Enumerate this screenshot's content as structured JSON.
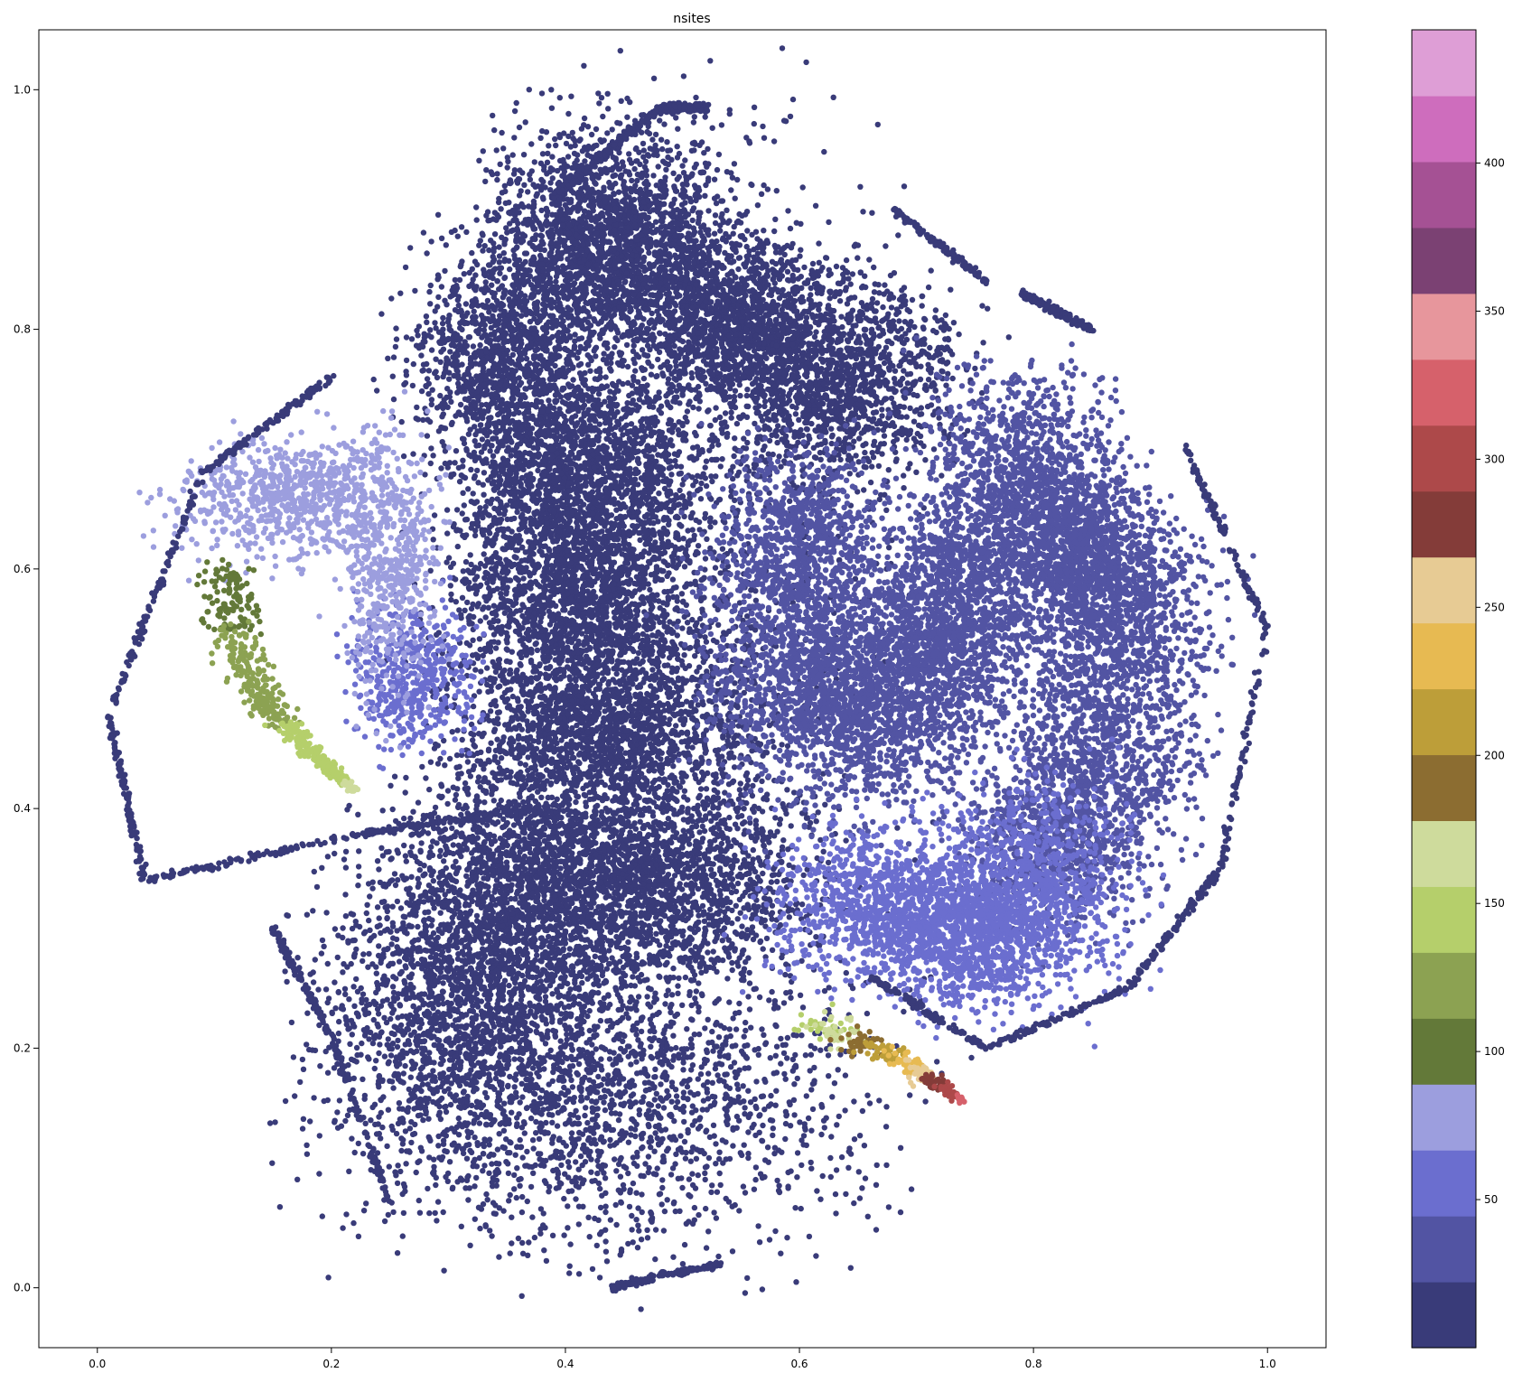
{
  "chart_data": {
    "type": "scatter",
    "title": "nsites",
    "xlabel": "",
    "ylabel": "",
    "xlim": [
      -0.05,
      1.05
    ],
    "ylim": [
      -0.05,
      1.05
    ],
    "xticks": [
      0.0,
      0.2,
      0.4,
      0.6,
      0.8,
      1.0
    ],
    "xtick_labels": [
      "0.0",
      "0.2",
      "0.4",
      "0.6",
      "0.8",
      "1.0"
    ],
    "yticks": [
      0.0,
      0.2,
      0.4,
      0.6,
      0.8,
      1.0
    ],
    "ytick_labels": [
      "0.0",
      "0.2",
      "0.4",
      "0.6",
      "0.8",
      "1.0"
    ],
    "grid": false,
    "legend": "none",
    "colorbar": {
      "vmin": 0,
      "vmax": 445,
      "ticks": [
        50,
        100,
        150,
        200,
        250,
        300,
        350,
        400
      ],
      "tick_labels": [
        "50",
        "100",
        "150",
        "200",
        "250",
        "300",
        "350",
        "400"
      ],
      "colors": [
        "#393b79",
        "#5254a3",
        "#6b6ecf",
        "#9c9ede",
        "#637939",
        "#8ca252",
        "#b5cf6b",
        "#cedb9c",
        "#8c6d31",
        "#bd9e39",
        "#e7ba52",
        "#e7cb94",
        "#843c39",
        "#ad494a",
        "#d6616b",
        "#e7969c",
        "#7b4173",
        "#a55194",
        "#ce6dbd",
        "#de9ed6"
      ]
    },
    "clusters": [
      {
        "cx": 0.44,
        "cy": 0.87,
        "sx": 0.05,
        "sy": 0.045,
        "n": 2200,
        "value": 10
      },
      {
        "cx": 0.35,
        "cy": 0.78,
        "sx": 0.04,
        "sy": 0.04,
        "n": 1200,
        "value": 10
      },
      {
        "cx": 0.54,
        "cy": 0.81,
        "sx": 0.04,
        "sy": 0.035,
        "n": 1200,
        "value": 10
      },
      {
        "cx": 0.63,
        "cy": 0.76,
        "sx": 0.05,
        "sy": 0.04,
        "n": 1500,
        "value": 10
      },
      {
        "cx": 0.41,
        "cy": 0.68,
        "sx": 0.05,
        "sy": 0.04,
        "n": 1700,
        "value": 10
      },
      {
        "cx": 0.41,
        "cy": 0.58,
        "sx": 0.05,
        "sy": 0.04,
        "n": 1600,
        "value": 10
      },
      {
        "cx": 0.43,
        "cy": 0.47,
        "sx": 0.06,
        "sy": 0.04,
        "n": 1900,
        "value": 10
      },
      {
        "cx": 0.36,
        "cy": 0.33,
        "sx": 0.06,
        "sy": 0.05,
        "n": 1900,
        "value": 10
      },
      {
        "cx": 0.48,
        "cy": 0.34,
        "sx": 0.06,
        "sy": 0.04,
        "n": 1600,
        "value": 10
      },
      {
        "cx": 0.31,
        "cy": 0.22,
        "sx": 0.06,
        "sy": 0.06,
        "n": 1500,
        "value": 10
      },
      {
        "cx": 0.44,
        "cy": 0.16,
        "sx": 0.1,
        "sy": 0.06,
        "n": 1700,
        "value": 10
      },
      {
        "cx": 0.52,
        "cy": 0.62,
        "sx": 0.08,
        "sy": 0.18,
        "n": 1200,
        "value": 10
      },
      {
        "cx": 0.6,
        "cy": 0.54,
        "sx": 0.04,
        "sy": 0.06,
        "n": 1500,
        "value": 30
      },
      {
        "cx": 0.66,
        "cy": 0.48,
        "sx": 0.04,
        "sy": 0.04,
        "n": 900,
        "value": 30
      },
      {
        "cx": 0.72,
        "cy": 0.53,
        "sx": 0.04,
        "sy": 0.04,
        "n": 1100,
        "value": 30
      },
      {
        "cx": 0.79,
        "cy": 0.68,
        "sx": 0.04,
        "sy": 0.04,
        "n": 1100,
        "value": 30
      },
      {
        "cx": 0.84,
        "cy": 0.62,
        "sx": 0.03,
        "sy": 0.03,
        "n": 800,
        "value": 30
      },
      {
        "cx": 0.87,
        "cy": 0.57,
        "sx": 0.04,
        "sy": 0.04,
        "n": 1000,
        "value": 30
      },
      {
        "cx": 0.86,
        "cy": 0.46,
        "sx": 0.04,
        "sy": 0.05,
        "n": 1000,
        "value": 30
      },
      {
        "cx": 0.74,
        "cy": 0.6,
        "sx": 0.03,
        "sy": 0.03,
        "n": 600,
        "value": 30
      },
      {
        "cx": 0.6,
        "cy": 0.64,
        "sx": 0.03,
        "sy": 0.03,
        "n": 500,
        "value": 30
      },
      {
        "cx": 0.82,
        "cy": 0.38,
        "sx": 0.04,
        "sy": 0.04,
        "n": 800,
        "value": 30
      },
      {
        "cx": 0.68,
        "cy": 0.32,
        "sx": 0.05,
        "sy": 0.03,
        "n": 1100,
        "value": 45
      },
      {
        "cx": 0.75,
        "cy": 0.29,
        "sx": 0.04,
        "sy": 0.03,
        "n": 900,
        "value": 45
      },
      {
        "cx": 0.8,
        "cy": 0.34,
        "sx": 0.04,
        "sy": 0.04,
        "n": 900,
        "value": 45
      },
      {
        "cx": 0.27,
        "cy": 0.51,
        "sx": 0.025,
        "sy": 0.03,
        "n": 500,
        "value": 45
      },
      {
        "cx": 0.17,
        "cy": 0.66,
        "sx": 0.05,
        "sy": 0.025,
        "n": 800,
        "value": 75
      },
      {
        "cx": 0.25,
        "cy": 0.6,
        "sx": 0.02,
        "sy": 0.05,
        "n": 500,
        "value": 75
      }
    ],
    "curves": [
      {
        "value": 10,
        "n": 500,
        "points": [
          [
            0.39,
            0.91
          ],
          [
            0.48,
            0.985
          ],
          [
            0.52,
            0.985
          ]
        ]
      },
      {
        "value": 10,
        "n": 600,
        "points": [
          [
            0.2,
            0.76
          ],
          [
            0.09,
            0.68
          ],
          [
            0.01,
            0.48
          ],
          [
            0.04,
            0.34
          ],
          [
            0.23,
            0.38
          ],
          [
            0.38,
            0.4
          ]
        ]
      },
      {
        "value": 10,
        "n": 500,
        "points": [
          [
            0.93,
            0.7
          ],
          [
            1.0,
            0.55
          ],
          [
            0.96,
            0.35
          ],
          [
            0.88,
            0.25
          ],
          [
            0.76,
            0.2
          ],
          [
            0.66,
            0.26
          ]
        ]
      },
      {
        "value": 10,
        "n": 150,
        "points": [
          [
            0.79,
            0.83
          ],
          [
            0.85,
            0.8
          ]
        ]
      },
      {
        "value": 10,
        "n": 200,
        "points": [
          [
            0.15,
            0.3
          ],
          [
            0.2,
            0.21
          ],
          [
            0.25,
            0.07
          ]
        ]
      },
      {
        "value": 10,
        "n": 150,
        "points": [
          [
            0.44,
            0.0
          ],
          [
            0.53,
            0.02
          ]
        ]
      },
      {
        "value": 10,
        "n": 120,
        "points": [
          [
            0.68,
            0.9
          ],
          [
            0.76,
            0.84
          ]
        ]
      }
    ],
    "streaks": [
      {
        "points": [
          [
            0.11,
            0.6
          ],
          [
            0.12,
            0.53
          ],
          [
            0.15,
            0.48
          ],
          [
            0.19,
            0.44
          ],
          [
            0.22,
            0.415
          ]
        ],
        "n": 600,
        "valueStart": 100,
        "valueEnd": 160
      },
      {
        "points": [
          [
            0.61,
            0.222
          ],
          [
            0.69,
            0.19
          ],
          [
            0.74,
            0.155
          ]
        ],
        "n": 300,
        "valueStart": 140,
        "valueEnd": 320
      }
    ]
  }
}
